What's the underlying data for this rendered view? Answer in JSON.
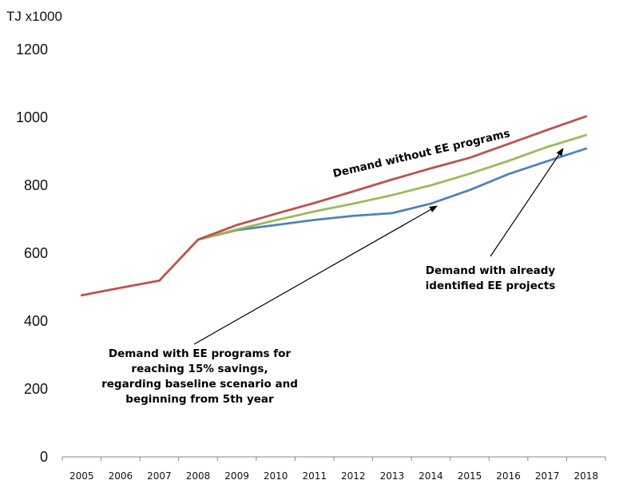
{
  "chart_data": {
    "type": "line",
    "unit_label": "TJ x1000",
    "ylim": [
      0,
      1200
    ],
    "y_ticks": [
      "0",
      "200",
      "400",
      "600",
      "800",
      "1000",
      "1200"
    ],
    "categories": [
      "2005",
      "2006",
      "2007",
      "2008",
      "2009",
      "2010",
      "2011",
      "2012",
      "2013",
      "2014",
      "2015",
      "2016",
      "2017",
      "2018"
    ],
    "grid": false,
    "series": [
      {
        "color": "#c0504d",
        "values": [
          476,
          498,
          519,
          640,
          683,
          716,
          748,
          782,
          817,
          850,
          881,
          922,
          963,
          1003
        ]
      },
      {
        "color": "#9bbb59",
        "values": [
          null,
          null,
          null,
          640,
          670,
          697,
          723,
          746,
          771,
          800,
          834,
          872,
          913,
          948
        ]
      },
      {
        "color": "#4f81bd",
        "values": [
          null,
          null,
          null,
          640,
          668,
          683,
          698,
          710,
          718,
          746,
          786,
          833,
          871,
          908
        ]
      }
    ],
    "annotations": {
      "without": "Demand without EE programs",
      "identified": [
        "Demand with already",
        "identified EE projects"
      ],
      "programs": [
        "Demand with EE programs for",
        "reaching 15% savings,",
        "regarding baseline scenario and",
        "beginning from 5th year"
      ]
    }
  }
}
